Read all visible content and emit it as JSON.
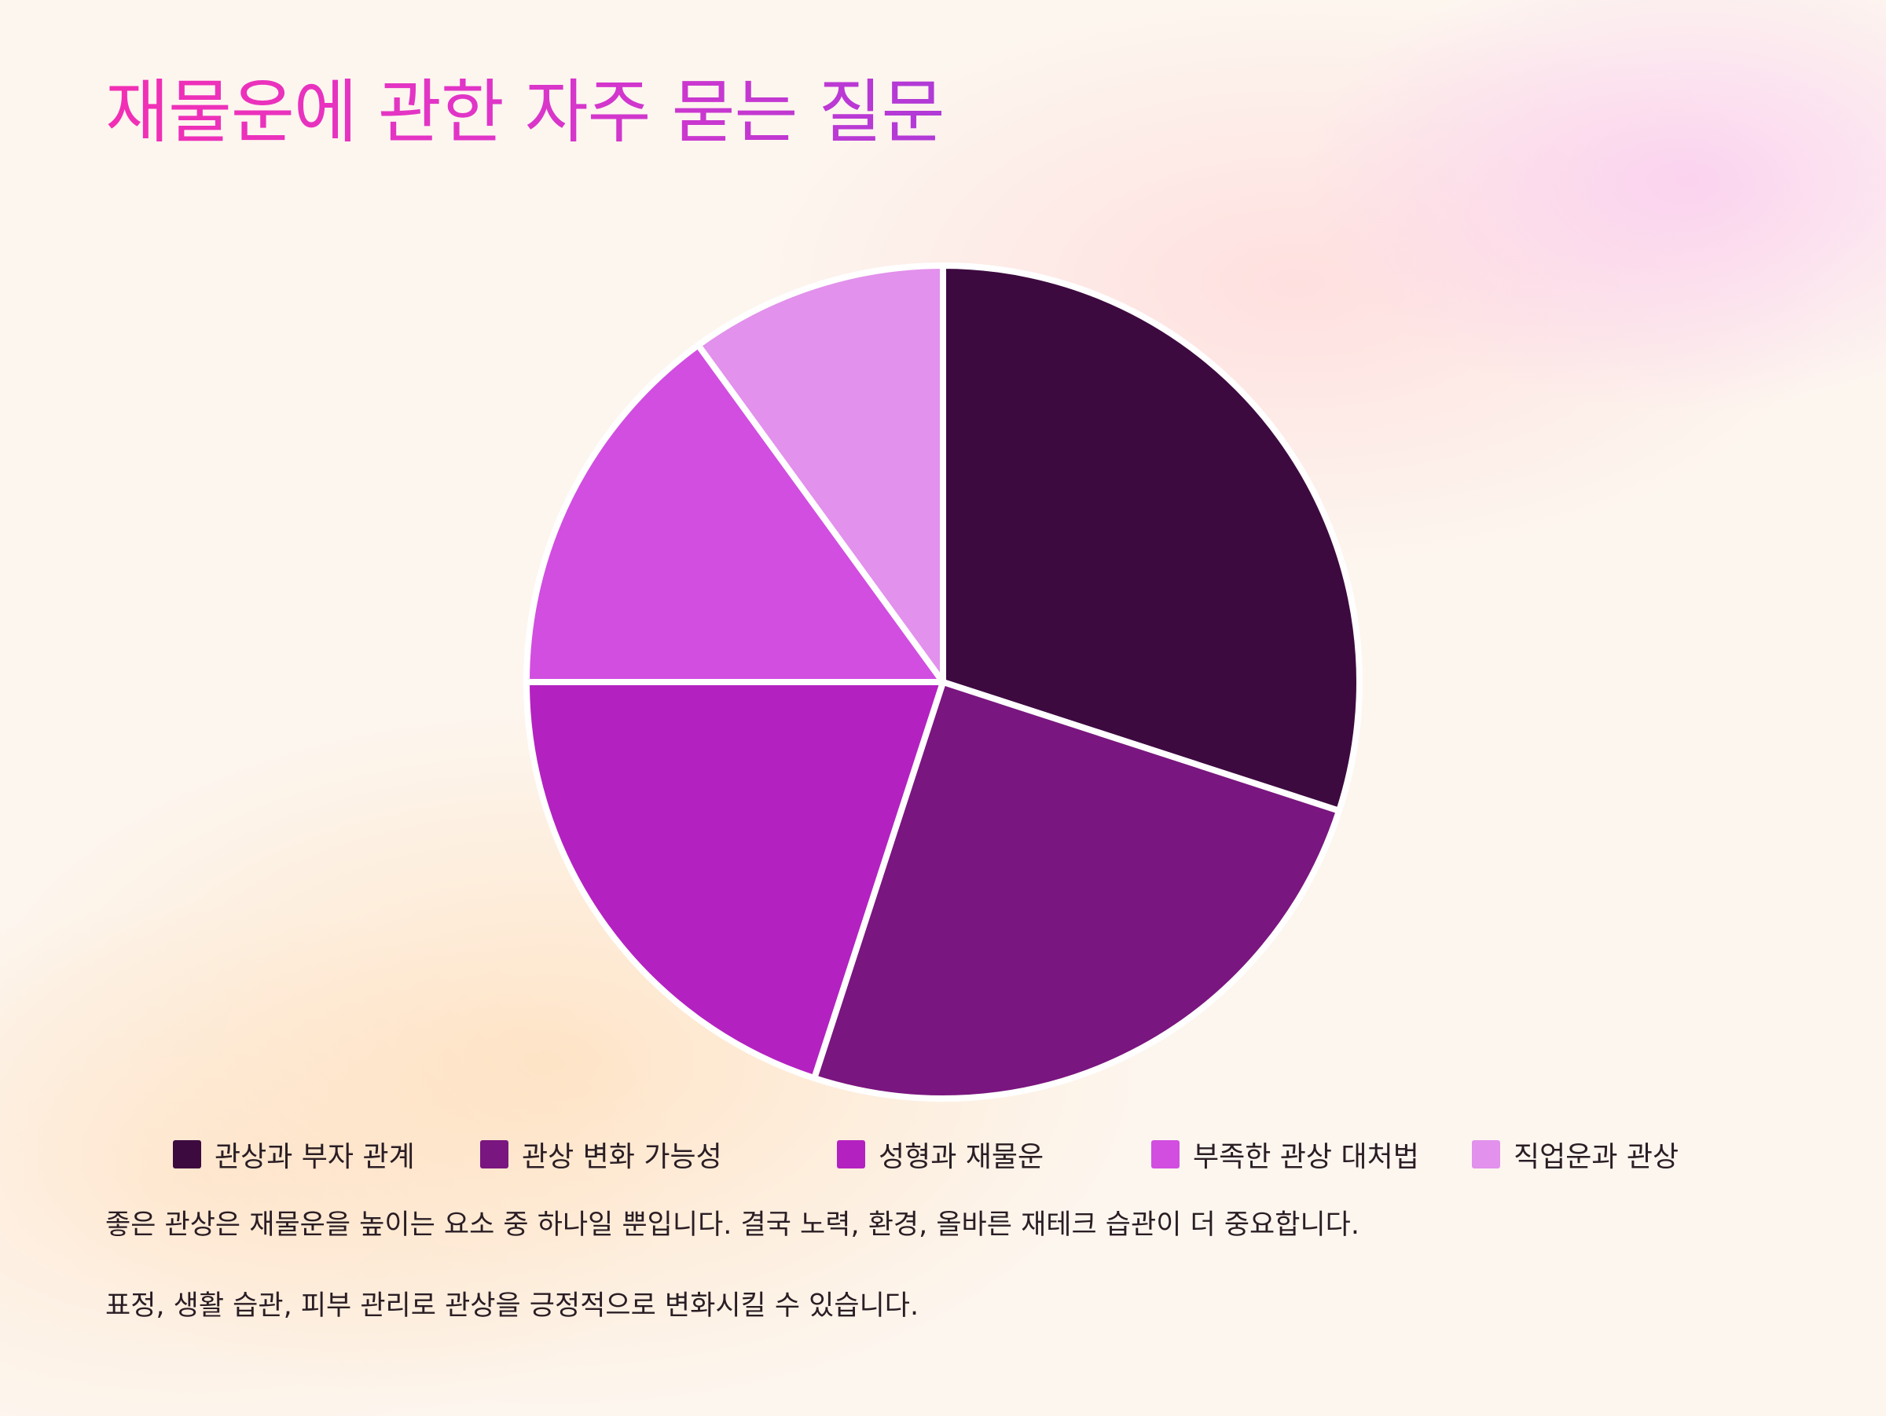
{
  "title": "재물운에 관한 자주 묻는 질문",
  "chart_data": {
    "type": "pie",
    "title": "",
    "categories": [
      "관상과 부자 관계",
      "관상 변화 가능성",
      "성형과 재물운",
      "부족한 관상 대처법",
      "직업운과 관상"
    ],
    "values": [
      30,
      25,
      20,
      15,
      10
    ],
    "colors": [
      "#3d0a40",
      "#7a167f",
      "#b322c0",
      "#d14ee0",
      "#e291ec"
    ],
    "legend_position": "bottom",
    "start_angle": "top",
    "direction": "clockwise"
  },
  "notes": [
    "좋은 관상은 재물운을 높이는 요소 중 하나일 뿐입니다. 결국 노력, 환경, 올바른 재테크 습관이 더 중요합니다.",
    "표정, 생활 습관, 피부 관리로 관상을 긍정적으로 변화시킬 수 있습니다."
  ]
}
